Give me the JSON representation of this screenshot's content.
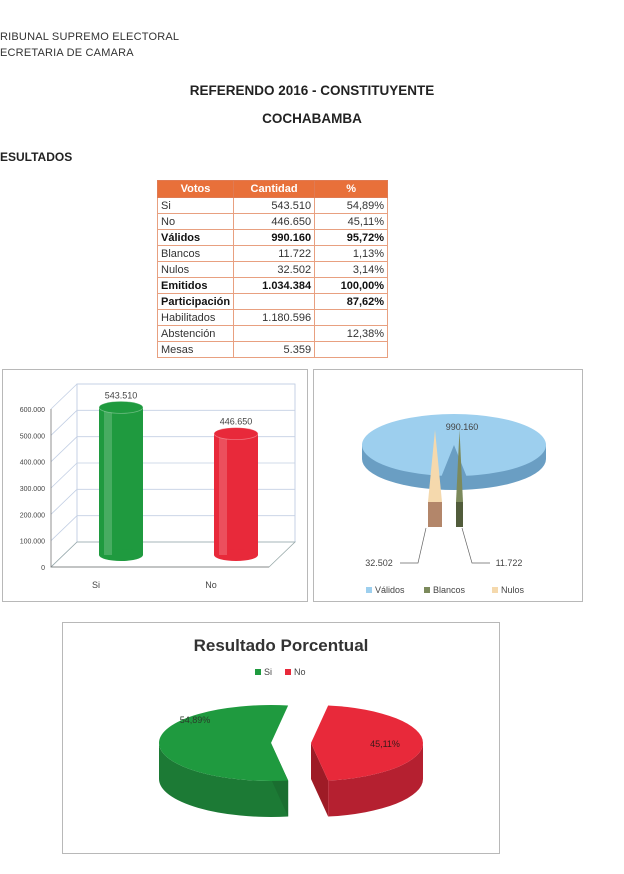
{
  "header": {
    "org_line1": "RIBUNAL SUPREMO ELECTORAL",
    "org_line2": "ECRETARIA DE CAMARA",
    "title": "REFERENDO 2016 - CONSTITUYENTE",
    "subtitle": "COCHABAMBA",
    "section": "ESULTADOS"
  },
  "table": {
    "headers": [
      "Votos",
      "Cantidad",
      "%"
    ],
    "rows": [
      {
        "label": "Si",
        "cantidad": "543.510",
        "pct": "54,89%",
        "bold": false
      },
      {
        "label": "No",
        "cantidad": "446.650",
        "pct": "45,11%",
        "bold": false
      },
      {
        "label": "Válidos",
        "cantidad": "990.160",
        "pct": "95,72%",
        "bold": true
      },
      {
        "label": "Blancos",
        "cantidad": "11.722",
        "pct": "1,13%",
        "bold": false
      },
      {
        "label": "Nulos",
        "cantidad": "32.502",
        "pct": "3,14%",
        "bold": false
      },
      {
        "label": "Emitidos",
        "cantidad": "1.034.384",
        "pct": "100,00%",
        "bold": true
      },
      {
        "label": "Participación",
        "cantidad": "",
        "pct": "87,62%",
        "bold": true
      },
      {
        "label": "Habilitados",
        "cantidad": "1.180.596",
        "pct": "",
        "bold": false
      },
      {
        "label": "Abstención",
        "cantidad": "",
        "pct": "12,38%",
        "bold": false
      },
      {
        "label": "Mesas",
        "cantidad": "5.359",
        "pct": "",
        "bold": false
      }
    ]
  },
  "chart_data": [
    {
      "type": "bar",
      "categories": [
        "Si",
        "No"
      ],
      "values": [
        543510,
        446650
      ],
      "data_labels": [
        "543.510",
        "446.650"
      ],
      "yticks": [
        "0",
        "100.000",
        "200.000",
        "300.000",
        "400.000",
        "500.000",
        "600.000"
      ],
      "ylim": [
        0,
        600000
      ],
      "colors": [
        "#1f9a3f",
        "#e8293a"
      ],
      "grid": true
    },
    {
      "type": "pie",
      "labels": [
        "Válidos",
        "Blancos",
        "Nulos"
      ],
      "values": [
        990160,
        11722,
        32502
      ],
      "data_labels": [
        "990.160",
        "11.722",
        "32.502"
      ],
      "colors": [
        "#9dcfee",
        "#7c8a5c",
        "#f5d9ad"
      ],
      "legend": "bottom"
    },
    {
      "type": "pie",
      "title": "Resultado Porcentual",
      "labels": [
        "Si",
        "No"
      ],
      "values": [
        54.89,
        45.11
      ],
      "data_labels": [
        "54,89%",
        "45,11%"
      ],
      "colors": [
        "#1f9a3f",
        "#e8293a"
      ],
      "legend": "top"
    }
  ]
}
